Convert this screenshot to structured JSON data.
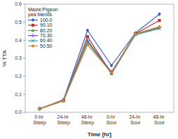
{
  "chart_data": {
    "type": "line",
    "title": "Maize:Pigeon\npea blends",
    "xlabel": "Time [hr]",
    "ylabel": "% TTA",
    "categories": [
      "0-hr Steep",
      "24-hr Steep",
      "48-hr Steep",
      "0-hr Sour",
      "24-hr Sour",
      "48-hr Sour"
    ],
    "series": [
      {
        "name": "100.0",
        "color": "#3060c0",
        "marker": "diamond",
        "values": [
          0.02,
          0.07,
          0.455,
          0.26,
          0.44,
          0.545
        ]
      },
      {
        "name": "90.10",
        "color": "#c03030",
        "marker": "square",
        "values": [
          0.02,
          0.065,
          0.42,
          0.215,
          0.435,
          0.51
        ]
      },
      {
        "name": "80.20",
        "color": "#50a030",
        "marker": "triangle",
        "values": [
          0.02,
          0.065,
          0.4,
          0.215,
          0.435,
          0.475
        ]
      },
      {
        "name": "70.30",
        "color": "#7050b0",
        "marker": "plus",
        "values": [
          0.02,
          0.065,
          0.395,
          0.225,
          0.435,
          0.47
        ]
      },
      {
        "name": "60.40",
        "color": "#30a0b0",
        "marker": "x",
        "values": [
          0.02,
          0.065,
          0.39,
          0.215,
          0.43,
          0.465
        ]
      },
      {
        "name": "50.50",
        "color": "#e08020",
        "marker": "circle",
        "values": [
          0.02,
          0.065,
          0.375,
          0.22,
          0.435,
          0.475
        ]
      }
    ],
    "ylim": [
      0,
      0.6
    ],
    "yticks": [
      {
        "value": 0,
        "label": "0.0"
      },
      0.1,
      0.2,
      0.3,
      0.4,
      0.5,
      0.6
    ],
    "legend": "upper left",
    "grid": false
  }
}
